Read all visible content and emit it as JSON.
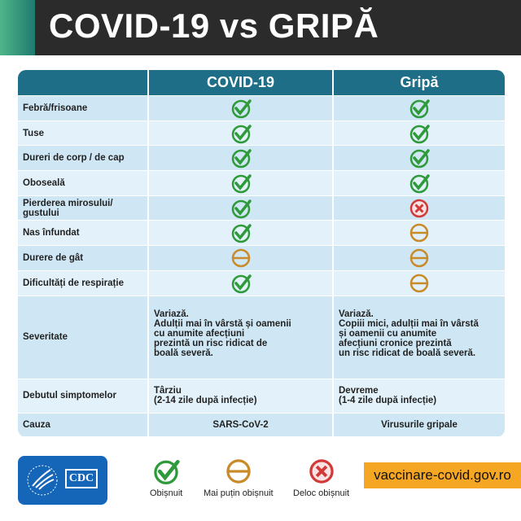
{
  "title": "COVID-19 vs GRIPĂ",
  "table": {
    "headers": [
      "",
      "COVID-19",
      "Gripă"
    ],
    "symptoms": [
      {
        "label": "Febră/frisoane",
        "covid": "common",
        "flu": "common"
      },
      {
        "label": "Tuse",
        "covid": "common",
        "flu": "common"
      },
      {
        "label": "Dureri de corp / de cap",
        "covid": "common",
        "flu": "common"
      },
      {
        "label": "Oboseală",
        "covid": "common",
        "flu": "common"
      },
      {
        "label": "Pierderea mirosului/\ngustului",
        "covid": "common",
        "flu": "rare"
      },
      {
        "label": "Nas înfundat",
        "covid": "common",
        "flu": "less"
      },
      {
        "label": "Durere de gât",
        "covid": "less",
        "flu": "less"
      },
      {
        "label": "Dificultăți de respirație",
        "covid": "common",
        "flu": "less"
      }
    ],
    "severity": {
      "label": "Severitate",
      "covid": "Variază.\nAdulții mai în vârstă și oamenii\ncu anumite afecțiuni\nprezintă un risc ridicat de\nboală severă.",
      "flu": "Variază.\nCopiii mici, adulții mai în vârstă\nși oamenii cu anumite\nafecțiuni cronice prezintă\nun risc ridicat de boală severă."
    },
    "onset": {
      "label": "Debutul simptomelor",
      "covid": "Târziu\n(2-14 zile după infecție)",
      "flu": "Devreme\n(1-4 zile după infecție)"
    },
    "cause": {
      "label": "Cauza",
      "covid": "SARS-CoV-2",
      "flu": "Virusurile gripale"
    }
  },
  "legend": {
    "common": "Obișnuit",
    "less": "Mai puțin obișnuit",
    "rare": "Deloc obișnuit"
  },
  "logo": "CDC",
  "url": "vaccinare-covid.gov.ro",
  "colors": {
    "common": "#2e9a3a",
    "less": "#c98a2a",
    "rare": "#d23a3a",
    "header": "#1d6e86",
    "url_bg": "#f5a623"
  }
}
